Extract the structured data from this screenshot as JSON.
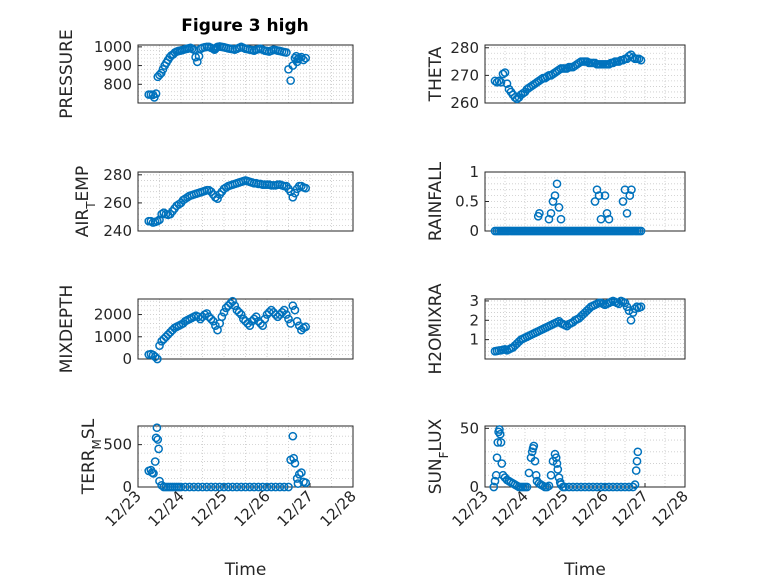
{
  "figure_title": "Figure 3 high",
  "colors": {
    "marker": "#0072bd",
    "axis": "#262626",
    "grid": "#c9c9c9"
  },
  "chart_data": [
    {
      "type": "scatter",
      "id": "pressure",
      "ylabel": "PRESSURE",
      "ylim": [
        700,
        1010
      ],
      "yticks": [
        800,
        900,
        1000
      ],
      "ytick_labels": [
        "800",
        "900",
        "1000"
      ],
      "xlim": [
        1,
        6
      ],
      "xticks": [],
      "xtick_labels": [],
      "xlabel": "",
      "x": [
        1.25,
        1.3,
        1.35,
        1.38,
        1.42,
        1.46,
        1.5,
        1.54,
        1.58,
        1.62,
        1.66,
        1.7,
        1.74,
        1.78,
        1.82,
        1.86,
        1.9,
        1.94,
        1.98,
        2.02,
        2.06,
        2.1,
        2.14,
        2.18,
        2.22,
        2.26,
        2.3,
        2.34,
        2.38,
        2.42,
        2.46,
        2.5,
        2.55,
        2.6,
        2.65,
        2.7,
        2.75,
        2.78,
        2.8,
        2.82,
        2.85,
        2.9,
        2.95,
        3.0,
        3.05,
        3.1,
        3.15,
        3.2,
        3.25,
        3.3,
        3.35,
        3.4,
        3.45,
        3.5,
        3.55,
        3.6,
        3.65,
        3.7,
        3.75,
        3.8,
        3.85,
        3.9,
        3.95,
        4.0,
        4.05,
        4.1,
        4.15,
        4.2,
        4.25,
        4.3,
        4.35,
        4.4,
        4.45,
        4.5,
        4.55,
        4.6,
        4.65,
        4.68,
        4.7,
        4.72,
        4.75,
        4.8,
        4.85,
        4.9
      ],
      "y": [
        745,
        745,
        744,
        730,
        750,
        840,
        850,
        860,
        880,
        900,
        915,
        930,
        945,
        955,
        960,
        970,
        975,
        978,
        980,
        982,
        985,
        988,
        990,
        992,
        995,
        990,
        985,
        945,
        920,
        950,
        990,
        995,
        998,
        1000,
        1000,
        995,
        990,
        985,
        990,
        995,
        1000,
        1002,
        1000,
        998,
        995,
        992,
        990,
        988,
        985,
        990,
        995,
        1000,
        995,
        990,
        988,
        985,
        983,
        980,
        985,
        988,
        990,
        985,
        980,
        978,
        975,
        980,
        985,
        983,
        980,
        978,
        975,
        972,
        970,
        880,
        820,
        900,
        940,
        950,
        920,
        935,
        940,
        945,
        930,
        940
      ]
    },
    {
      "type": "scatter",
      "id": "theta",
      "ylabel": "THETA",
      "ylim": [
        260,
        281
      ],
      "yticks": [
        260,
        270,
        280
      ],
      "ytick_labels": [
        "260",
        "270",
        "280"
      ],
      "xlim": [
        1,
        6
      ],
      "xticks": [],
      "xtick_labels": [],
      "xlabel": "",
      "x": [
        1.25,
        1.3,
        1.35,
        1.4,
        1.45,
        1.5,
        1.55,
        1.6,
        1.65,
        1.7,
        1.75,
        1.8,
        1.85,
        1.9,
        1.95,
        2.0,
        2.05,
        2.1,
        2.15,
        2.2,
        2.25,
        2.3,
        2.35,
        2.4,
        2.45,
        2.5,
        2.55,
        2.6,
        2.65,
        2.7,
        2.75,
        2.8,
        2.85,
        2.9,
        2.95,
        3.0,
        3.05,
        3.1,
        3.15,
        3.2,
        3.25,
        3.3,
        3.35,
        3.4,
        3.45,
        3.5,
        3.55,
        3.6,
        3.65,
        3.7,
        3.75,
        3.8,
        3.85,
        3.9,
        3.95,
        4.0,
        4.05,
        4.1,
        4.15,
        4.2,
        4.25,
        4.3,
        4.35,
        4.4,
        4.45,
        4.5,
        4.55,
        4.6,
        4.65,
        4.7,
        4.75,
        4.8,
        4.85,
        4.9
      ],
      "y": [
        268,
        267.5,
        268,
        267.5,
        270.5,
        271,
        267,
        265,
        264,
        263,
        262,
        261.5,
        262,
        263,
        263.5,
        264,
        265,
        265.5,
        266,
        266.5,
        267,
        267.5,
        268,
        268.5,
        269,
        269,
        269.5,
        270,
        270,
        270.5,
        271,
        271.5,
        272,
        272.5,
        272.5,
        272.5,
        272.5,
        273,
        273,
        273,
        273.5,
        274,
        274.5,
        275,
        275,
        275,
        275,
        274.5,
        274.5,
        274.5,
        274.5,
        274,
        274,
        274,
        274,
        274,
        274,
        274,
        274.5,
        274.5,
        275,
        275,
        275,
        275.5,
        275.5,
        276,
        276,
        277,
        277.5,
        276.5,
        276,
        276,
        276,
        275.5
      ]
    },
    {
      "type": "scatter",
      "id": "air_temp",
      "ylabel": "AIR_TEMP",
      "ylim": [
        240,
        282
      ],
      "yticks": [
        240,
        260,
        280
      ],
      "ytick_labels": [
        "240",
        "260",
        "280"
      ],
      "xlim": [
        1,
        6
      ],
      "xticks": [],
      "xtick_labels": [],
      "xlabel": "",
      "x": [
        1.25,
        1.3,
        1.35,
        1.4,
        1.45,
        1.5,
        1.55,
        1.6,
        1.65,
        1.7,
        1.75,
        1.8,
        1.85,
        1.9,
        1.95,
        2.0,
        2.05,
        2.1,
        2.15,
        2.2,
        2.25,
        2.3,
        2.35,
        2.4,
        2.45,
        2.5,
        2.55,
        2.6,
        2.65,
        2.7,
        2.75,
        2.8,
        2.85,
        2.9,
        2.95,
        3.0,
        3.05,
        3.1,
        3.15,
        3.2,
        3.25,
        3.3,
        3.35,
        3.4,
        3.45,
        3.5,
        3.55,
        3.6,
        3.65,
        3.7,
        3.75,
        3.8,
        3.85,
        3.9,
        3.95,
        4.0,
        4.05,
        4.1,
        4.15,
        4.2,
        4.25,
        4.3,
        4.35,
        4.4,
        4.45,
        4.5,
        4.55,
        4.6,
        4.65,
        4.7,
        4.75,
        4.8,
        4.85,
        4.9
      ],
      "y": [
        247,
        247,
        246,
        246.5,
        247,
        248,
        252,
        253,
        252,
        251.5,
        252,
        254,
        256,
        258,
        259,
        260,
        262,
        263,
        264,
        265,
        265.5,
        266,
        266.5,
        267,
        267.5,
        268,
        268.5,
        269,
        269,
        268,
        266,
        264,
        263,
        266,
        268,
        270,
        271,
        272,
        272.5,
        273,
        273.5,
        274,
        274.5,
        275,
        275.5,
        276,
        275.5,
        275,
        274.5,
        274,
        274,
        273.5,
        273.5,
        273,
        273,
        273,
        273,
        272.5,
        272.5,
        272.5,
        273,
        273,
        272.5,
        272,
        272,
        270,
        268,
        264,
        267,
        270,
        272,
        272,
        271,
        270.5
      ]
    },
    {
      "type": "scatter",
      "id": "rainfall",
      "ylabel": "RAINFALL",
      "ylim": [
        0,
        1
      ],
      "yticks": [
        0,
        0.5,
        1
      ],
      "ytick_labels": [
        "0",
        "0.5",
        "1"
      ],
      "xlim": [
        1,
        6
      ],
      "xticks": [],
      "xtick_labels": [],
      "xlabel": "",
      "x": [
        1.25,
        1.3,
        1.35,
        1.4,
        1.45,
        1.5,
        1.55,
        1.6,
        1.65,
        1.7,
        1.75,
        1.8,
        1.85,
        1.9,
        1.95,
        2.0,
        2.05,
        2.1,
        2.15,
        2.2,
        2.25,
        2.3,
        2.35,
        2.4,
        2.45,
        2.5,
        2.55,
        2.6,
        2.65,
        2.7,
        2.75,
        2.8,
        2.85,
        2.9,
        2.95,
        3.0,
        3.05,
        3.1,
        3.15,
        3.2,
        3.25,
        3.3,
        3.35,
        3.4,
        3.45,
        3.5,
        3.55,
        3.6,
        3.65,
        3.7,
        3.75,
        3.8,
        3.85,
        3.9,
        3.95,
        4.0,
        4.05,
        4.1,
        4.15,
        4.2,
        4.25,
        4.3,
        4.35,
        4.4,
        4.45,
        4.5,
        4.55,
        4.6,
        4.65,
        4.7,
        4.75,
        4.8,
        4.85,
        4.9,
        2.33,
        2.36,
        2.6,
        2.65,
        2.7,
        2.75,
        2.8,
        2.85,
        2.9,
        3.75,
        3.8,
        3.85,
        3.9,
        4.0,
        4.05,
        4.1,
        4.45,
        4.5,
        4.55,
        4.62,
        4.66
      ],
      "y": [
        0,
        0,
        0,
        0,
        0,
        0,
        0,
        0,
        0,
        0,
        0,
        0,
        0,
        0,
        0,
        0,
        0,
        0,
        0,
        0,
        0,
        0,
        0,
        0,
        0,
        0,
        0,
        0,
        0,
        0,
        0,
        0,
        0,
        0,
        0,
        0,
        0,
        0,
        0,
        0,
        0,
        0,
        0,
        0,
        0,
        0,
        0,
        0,
        0,
        0,
        0,
        0,
        0,
        0,
        0,
        0,
        0,
        0,
        0,
        0,
        0,
        0,
        0,
        0,
        0,
        0,
        0,
        0,
        0,
        0,
        0,
        0,
        0,
        0,
        0.25,
        0.3,
        0.2,
        0.3,
        0.5,
        0.6,
        0.8,
        0.4,
        0.2,
        0.5,
        0.7,
        0.6,
        0.2,
        0.6,
        0.3,
        0.2,
        0.5,
        0.7,
        0.3,
        0.6,
        0.7
      ]
    },
    {
      "type": "scatter",
      "id": "mixdepth",
      "ylabel": "MIXDEPTH",
      "ylim": [
        0,
        2700
      ],
      "yticks": [
        0,
        1000,
        2000
      ],
      "ytick_labels": [
        "0",
        "1000",
        "2000"
      ],
      "xlim": [
        1,
        6
      ],
      "xticks": [],
      "xtick_labels": [],
      "xlabel": "",
      "x": [
        1.25,
        1.3,
        1.35,
        1.4,
        1.45,
        1.5,
        1.55,
        1.6,
        1.65,
        1.7,
        1.75,
        1.8,
        1.85,
        1.9,
        1.95,
        2.0,
        2.05,
        2.1,
        2.15,
        2.2,
        2.25,
        2.3,
        2.35,
        2.4,
        2.45,
        2.5,
        2.55,
        2.6,
        2.65,
        2.7,
        2.75,
        2.8,
        2.85,
        2.9,
        2.95,
        3.0,
        3.05,
        3.1,
        3.15,
        3.2,
        3.25,
        3.3,
        3.35,
        3.4,
        3.45,
        3.5,
        3.55,
        3.6,
        3.65,
        3.7,
        3.75,
        3.8,
        3.85,
        3.9,
        3.95,
        4.0,
        4.05,
        4.1,
        4.15,
        4.2,
        4.25,
        4.3,
        4.35,
        4.4,
        4.45,
        4.5,
        4.55,
        4.6,
        4.65,
        4.7,
        4.75,
        4.8,
        4.85,
        4.9
      ],
      "y": [
        200,
        220,
        180,
        100,
        0,
        600,
        800,
        900,
        1000,
        1100,
        1200,
        1300,
        1400,
        1450,
        1500,
        1550,
        1600,
        1700,
        1750,
        1800,
        1850,
        1900,
        1950,
        1900,
        1800,
        1900,
        2000,
        2050,
        1900,
        1800,
        1700,
        1500,
        1300,
        1600,
        1900,
        2100,
        2300,
        2400,
        2500,
        2600,
        2400,
        2200,
        2100,
        2000,
        1800,
        1700,
        1600,
        1500,
        1700,
        1800,
        1900,
        1700,
        1600,
        1500,
        1800,
        2000,
        2100,
        2200,
        2100,
        2000,
        1900,
        2000,
        2100,
        2200,
        2000,
        1800,
        1600,
        2400,
        2200,
        1700,
        1500,
        1300,
        1400,
        1450
      ]
    },
    {
      "type": "scatter",
      "id": "h2omixra",
      "ylabel": "H2OMIXRA",
      "ylim": [
        0,
        3.1
      ],
      "yticks": [
        1,
        2,
        3
      ],
      "ytick_labels": [
        "1",
        "2",
        "3"
      ],
      "xlim": [
        1,
        6
      ],
      "xticks": [],
      "xtick_labels": [],
      "xlabel": "",
      "x": [
        1.25,
        1.3,
        1.35,
        1.4,
        1.45,
        1.5,
        1.55,
        1.6,
        1.65,
        1.7,
        1.75,
        1.8,
        1.85,
        1.9,
        1.95,
        2.0,
        2.05,
        2.1,
        2.15,
        2.2,
        2.25,
        2.3,
        2.35,
        2.4,
        2.45,
        2.5,
        2.55,
        2.6,
        2.65,
        2.7,
        2.75,
        2.8,
        2.85,
        2.9,
        2.95,
        3.0,
        3.05,
        3.1,
        3.15,
        3.2,
        3.25,
        3.3,
        3.35,
        3.4,
        3.45,
        3.5,
        3.55,
        3.6,
        3.65,
        3.7,
        3.75,
        3.8,
        3.85,
        3.9,
        3.95,
        4.0,
        4.05,
        4.1,
        4.15,
        4.2,
        4.25,
        4.3,
        4.35,
        4.4,
        4.45,
        4.5,
        4.55,
        4.6,
        4.65,
        4.7,
        4.75,
        4.8,
        4.85,
        4.9
      ],
      "y": [
        0.4,
        0.42,
        0.44,
        0.45,
        0.48,
        0.5,
        0.45,
        0.5,
        0.55,
        0.6,
        0.7,
        0.8,
        0.9,
        1.0,
        1.05,
        1.1,
        1.15,
        1.2,
        1.25,
        1.3,
        1.35,
        1.4,
        1.45,
        1.5,
        1.55,
        1.6,
        1.65,
        1.7,
        1.75,
        1.8,
        1.85,
        1.9,
        1.95,
        1.85,
        1.8,
        1.75,
        1.7,
        1.8,
        1.85,
        1.9,
        2.0,
        2.05,
        2.1,
        2.2,
        2.3,
        2.4,
        2.5,
        2.6,
        2.7,
        2.75,
        2.8,
        2.85,
        2.9,
        2.9,
        2.85,
        2.8,
        2.85,
        2.9,
        2.95,
        3.0,
        2.95,
        2.9,
        2.85,
        3.0,
        2.95,
        2.9,
        2.7,
        2.5,
        2.0,
        2.4,
        2.6,
        2.7,
        2.65,
        2.7
      ]
    },
    {
      "type": "scatter",
      "id": "terr_msl",
      "ylabel": "TERR_MSL",
      "ylim": [
        0,
        720
      ],
      "yticks": [
        0,
        500
      ],
      "ytick_labels": [
        "0",
        "500"
      ],
      "xlim": [
        1,
        6
      ],
      "xticks": [
        1,
        2,
        3,
        4,
        5,
        6
      ],
      "xtick_labels": [
        "12/23",
        "12/24",
        "12/25",
        "12/26",
        "12/27",
        "12/28"
      ],
      "xlabel": "Time",
      "x": [
        1.25,
        1.3,
        1.33,
        1.36,
        1.4,
        1.42,
        1.44,
        1.46,
        1.48,
        1.5,
        1.55,
        1.6,
        1.65,
        1.7,
        1.75,
        1.8,
        1.85,
        1.9,
        1.95,
        2.0,
        2.1,
        2.2,
        2.3,
        2.4,
        2.5,
        2.6,
        2.7,
        2.8,
        2.9,
        3.0,
        3.1,
        3.2,
        3.3,
        3.4,
        3.5,
        3.6,
        3.7,
        3.8,
        3.9,
        4.0,
        4.1,
        4.2,
        4.3,
        4.4,
        4.5,
        4.55,
        4.6,
        4.62,
        4.65,
        4.7,
        4.72,
        4.75,
        4.8,
        4.85,
        4.9
      ],
      "y": [
        190,
        200,
        170,
        160,
        300,
        580,
        700,
        560,
        450,
        70,
        20,
        0,
        0,
        0,
        0,
        0,
        0,
        0,
        0,
        0,
        0,
        0,
        0,
        0,
        0,
        0,
        0,
        0,
        0,
        0,
        0,
        0,
        0,
        0,
        0,
        0,
        0,
        0,
        0,
        0,
        0,
        0,
        0,
        0,
        0,
        320,
        600,
        340,
        280,
        100,
        40,
        150,
        170,
        60,
        50
      ]
    },
    {
      "type": "scatter",
      "id": "sun_flux",
      "ylabel": "SUN_FLUX",
      "ylim": [
        0,
        52
      ],
      "yticks": [
        0,
        50
      ],
      "ytick_labels": [
        "0",
        "50"
      ],
      "xlim": [
        1,
        6
      ],
      "xticks": [
        1,
        2,
        3,
        4,
        5,
        6
      ],
      "xtick_labels": [
        "12/23",
        "12/24",
        "12/25",
        "12/26",
        "12/27",
        "12/28"
      ],
      "xlabel": "Time",
      "x": [
        1.22,
        1.25,
        1.28,
        1.3,
        1.32,
        1.34,
        1.36,
        1.38,
        1.4,
        1.42,
        1.45,
        1.5,
        1.55,
        1.6,
        1.65,
        1.7,
        1.75,
        1.8,
        1.85,
        1.9,
        1.95,
        2.0,
        2.05,
        2.1,
        2.15,
        2.18,
        2.2,
        2.22,
        2.25,
        2.28,
        2.3,
        2.35,
        2.4,
        2.45,
        2.5,
        2.55,
        2.6,
        2.65,
        2.7,
        2.75,
        2.78,
        2.8,
        2.82,
        2.85,
        2.88,
        2.9,
        2.95,
        3.0,
        3.1,
        3.2,
        3.3,
        3.4,
        3.5,
        3.6,
        3.7,
        3.8,
        3.9,
        4.0,
        4.1,
        4.2,
        4.3,
        4.4,
        4.5,
        4.6,
        4.7,
        4.75,
        4.78,
        4.8,
        4.82
      ],
      "y": [
        0,
        5,
        10,
        25,
        38,
        47,
        49,
        45,
        38,
        20,
        10,
        8,
        6,
        5,
        4,
        3,
        2,
        1,
        0,
        0,
        0,
        0,
        0,
        12,
        25,
        30,
        33,
        35,
        22,
        10,
        5,
        3,
        2,
        1,
        0,
        0,
        1,
        10,
        22,
        28,
        25,
        20,
        15,
        8,
        4,
        2,
        0,
        0,
        0,
        0,
        0,
        0,
        0,
        0,
        0,
        0,
        0,
        0,
        0,
        0,
        0,
        0,
        0,
        0,
        0,
        2,
        14,
        22,
        30
      ]
    }
  ]
}
